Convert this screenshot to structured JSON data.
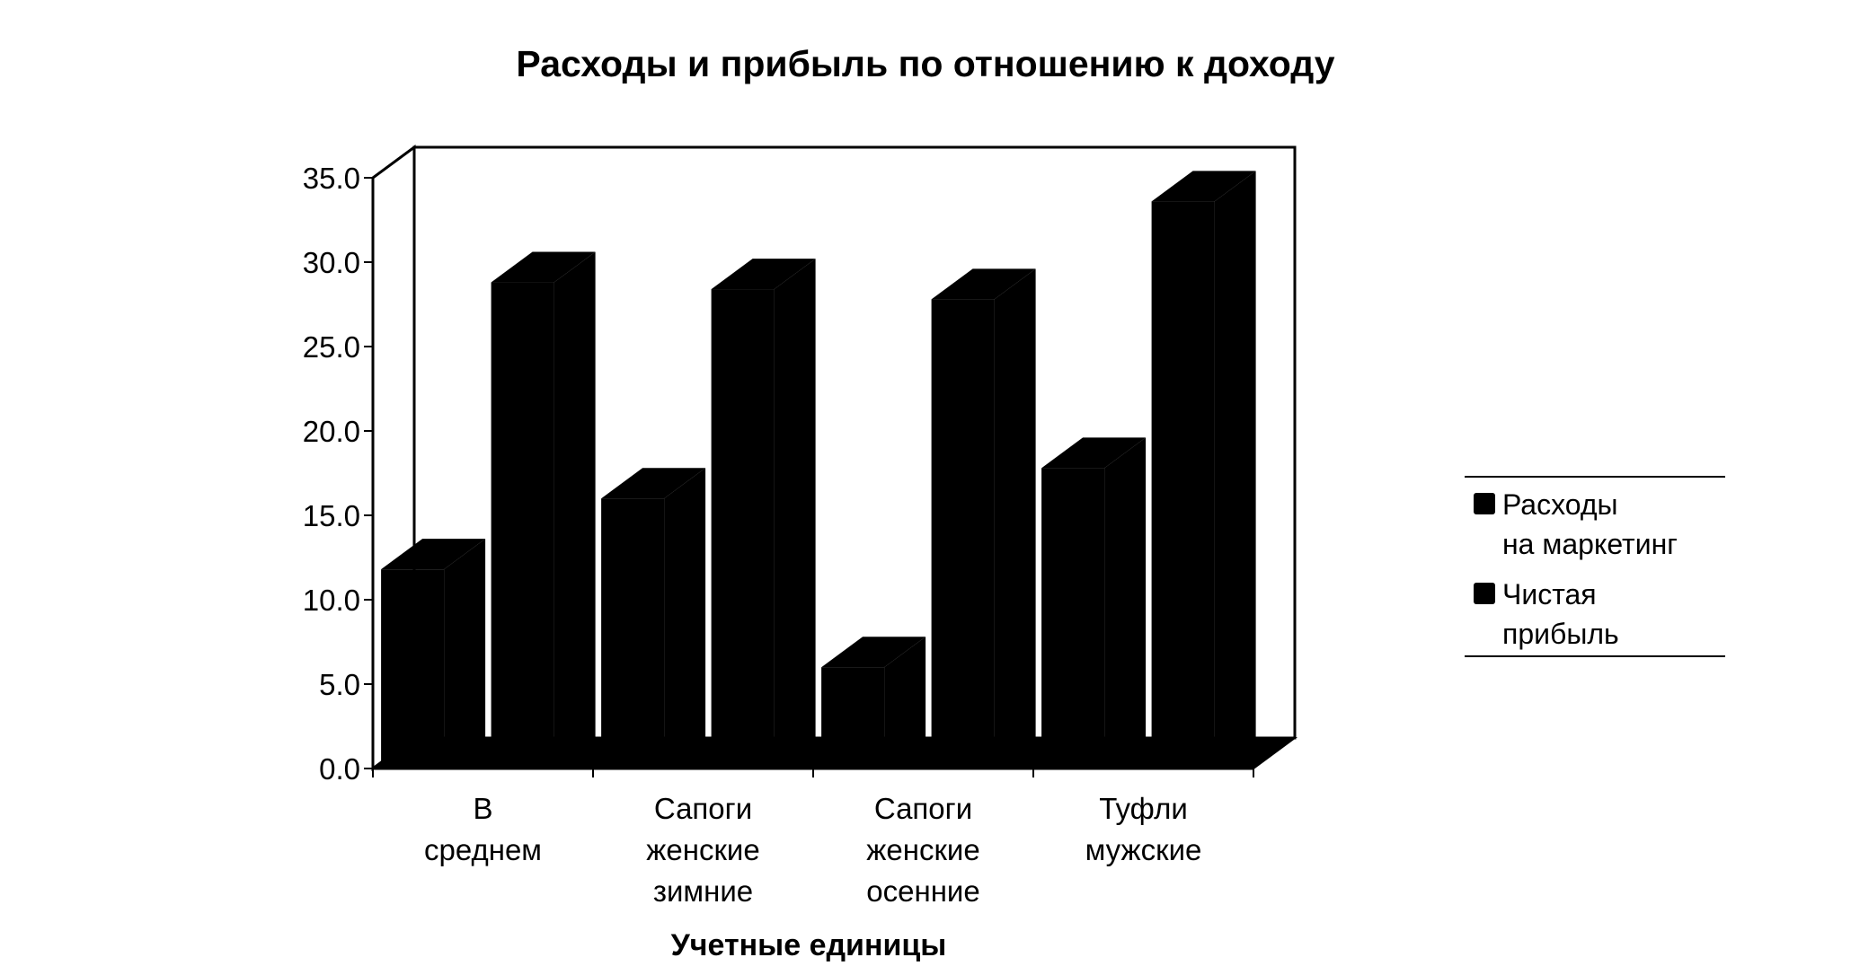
{
  "chart_data": {
    "type": "bar",
    "title": "Расходы и прибыль по отношению к доходу",
    "xlabel": "Учетные единицы",
    "ylabel": "",
    "ylim": [
      0,
      35
    ],
    "yticks": [
      "0.0",
      "5.0",
      "10.0",
      "15.0",
      "20.0",
      "25.0",
      "30.0",
      "35.0"
    ],
    "categories": [
      [
        "В",
        "среднем"
      ],
      [
        "Сапоги",
        "женские",
        "зимние"
      ],
      [
        "Сапоги",
        "женские",
        "осенние"
      ],
      [
        "Туфли",
        "мужские"
      ]
    ],
    "series": [
      {
        "name": [
          "Расходы",
          "на маркетинг"
        ],
        "values": [
          11.8,
          16.0,
          6.0,
          17.8
        ]
      },
      {
        "name": [
          "Чистая",
          "прибыль"
        ],
        "values": [
          28.8,
          28.4,
          27.8,
          33.6
        ]
      }
    ],
    "three_d": true,
    "grid": false,
    "legend_position": "right"
  },
  "colors": {
    "bar": "#000000",
    "background": "#ffffff",
    "axis": "#000000"
  }
}
